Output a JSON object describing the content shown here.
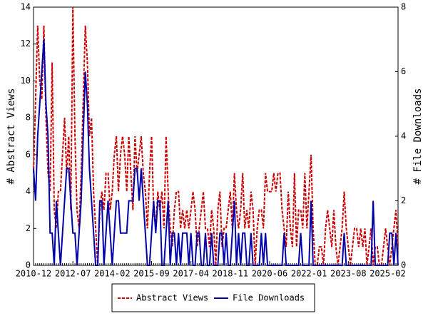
{
  "chart_data": {
    "type": "line",
    "categories": [
      "2010-12",
      null,
      null,
      null,
      null,
      null,
      null,
      null,
      null,
      null,
      null,
      null,
      null,
      null,
      null,
      null,
      null,
      null,
      null,
      "2012-07",
      null,
      null,
      null,
      null,
      null,
      null,
      null,
      null,
      null,
      null,
      null,
      null,
      null,
      null,
      null,
      null,
      null,
      null,
      "2014-02",
      null,
      null,
      null,
      null,
      null,
      null,
      null,
      null,
      null,
      null,
      null,
      null,
      null,
      null,
      null,
      null,
      null,
      null,
      "2015-09",
      null,
      null,
      null,
      null,
      null,
      null,
      null,
      null,
      null,
      null,
      null,
      null,
      null,
      null,
      null,
      null,
      null,
      null,
      "2017-04",
      null,
      null,
      null,
      null,
      null,
      null,
      null,
      null,
      null,
      null,
      null,
      null,
      null,
      null,
      null,
      null,
      null,
      null,
      "2018-11",
      null,
      null,
      null,
      null,
      null,
      null,
      null,
      null,
      null,
      null,
      null,
      null,
      null,
      null,
      null,
      null,
      null,
      null,
      "2020-06",
      null,
      null,
      null,
      null,
      null,
      null,
      null,
      null,
      null,
      null,
      null,
      null,
      null,
      null,
      null,
      null,
      null,
      null,
      "2022-01",
      null,
      null,
      null,
      null,
      null,
      null,
      null,
      null,
      null,
      null,
      null,
      null,
      null,
      null,
      null,
      null,
      null,
      null,
      "2023-08",
      null,
      null,
      null,
      null,
      null,
      null,
      null,
      null,
      null,
      null,
      null,
      null,
      null,
      null,
      null,
      null,
      null,
      null,
      "2025-02",
      null,
      null,
      null,
      null,
      null
    ],
    "series": [
      {
        "name": "Abstract Views",
        "color": "#cc0000",
        "dash": true,
        "values": [
          5,
          9,
          13,
          10,
          9,
          13,
          8,
          5,
          4,
          11,
          3,
          2,
          4,
          4,
          6,
          8,
          5,
          7,
          3,
          14,
          7,
          3,
          2,
          5,
          9,
          13,
          11,
          7,
          8,
          4,
          2,
          0,
          3,
          4,
          3,
          5,
          5,
          3,
          4,
          6,
          7,
          4,
          6,
          7,
          6,
          4,
          7,
          5,
          3,
          7,
          5,
          6,
          7,
          5,
          4,
          2,
          5,
          7,
          3,
          2,
          4,
          3,
          4,
          2,
          7,
          4,
          2,
          1,
          3,
          4,
          4,
          2,
          3,
          2,
          3,
          2,
          3,
          4,
          3,
          1,
          2,
          3,
          4,
          2,
          2,
          1,
          3,
          2,
          0,
          3,
          4,
          1,
          2,
          2,
          3,
          4,
          2,
          5,
          3,
          2,
          3,
          5,
          2,
          3,
          2,
          4,
          3,
          0,
          2,
          3,
          3,
          2,
          5,
          4,
          4,
          4,
          5,
          4,
          5,
          5,
          3,
          2,
          1,
          4,
          2,
          1,
          5,
          1,
          3,
          3,
          2,
          5,
          2,
          4,
          6,
          2,
          0,
          0,
          1,
          1,
          0,
          2,
          3,
          2,
          1,
          3,
          1,
          0,
          1,
          2,
          4,
          2,
          1,
          0,
          1,
          2,
          2,
          1,
          2,
          1,
          2,
          0,
          1,
          2,
          0,
          1,
          1,
          0,
          0,
          1,
          2,
          1,
          0,
          1,
          2,
          3,
          1
        ]
      },
      {
        "name": "File Downloads",
        "color": "#0000aa",
        "dash": false,
        "axis": "y2",
        "values": [
          3,
          2,
          4,
          5,
          6,
          7,
          5,
          4,
          1,
          1,
          0,
          2,
          1,
          0,
          1,
          2,
          3,
          3,
          2,
          1,
          1,
          0,
          1,
          2,
          4,
          6,
          5,
          3,
          2,
          1,
          0,
          0,
          2,
          2,
          0,
          1,
          2,
          1,
          0,
          1,
          2,
          2,
          1,
          1,
          1,
          1,
          2,
          2,
          2,
          3,
          3,
          2,
          3,
          2,
          1,
          0,
          0,
          1,
          2,
          1,
          2,
          2,
          0,
          0,
          1,
          2,
          0,
          1,
          1,
          0,
          1,
          0,
          1,
          1,
          1,
          0,
          1,
          0,
          0,
          1,
          1,
          0,
          0,
          1,
          0,
          0,
          1,
          0,
          0,
          0,
          1,
          1,
          0,
          1,
          0,
          0,
          1,
          2,
          0,
          1,
          0,
          1,
          1,
          0,
          0,
          1,
          0,
          0,
          0,
          0,
          1,
          0,
          1,
          0,
          0,
          0,
          0,
          0,
          0,
          0,
          0,
          1,
          0,
          0,
          0,
          0,
          0,
          0,
          0,
          1,
          0,
          0,
          0,
          0,
          2,
          0,
          0,
          0,
          0,
          0,
          0,
          0,
          0,
          0,
          0,
          0,
          0,
          0,
          0,
          0,
          1,
          0,
          0,
          0,
          0,
          0,
          0,
          0,
          0,
          0,
          0,
          0,
          0,
          0,
          2,
          0,
          0,
          0,
          0,
          0,
          0,
          0,
          1,
          1,
          0,
          1,
          0
        ]
      }
    ],
    "y_label": "# Abstract Views",
    "y2_label": "# File Downloads",
    "ylim": [
      0,
      14
    ],
    "yticks": [
      0,
      2,
      4,
      6,
      8,
      10,
      12,
      14
    ],
    "y2lim": [
      0,
      8
    ],
    "y2ticks": [
      0,
      2,
      4,
      6,
      8
    ],
    "legend": "bottom"
  }
}
